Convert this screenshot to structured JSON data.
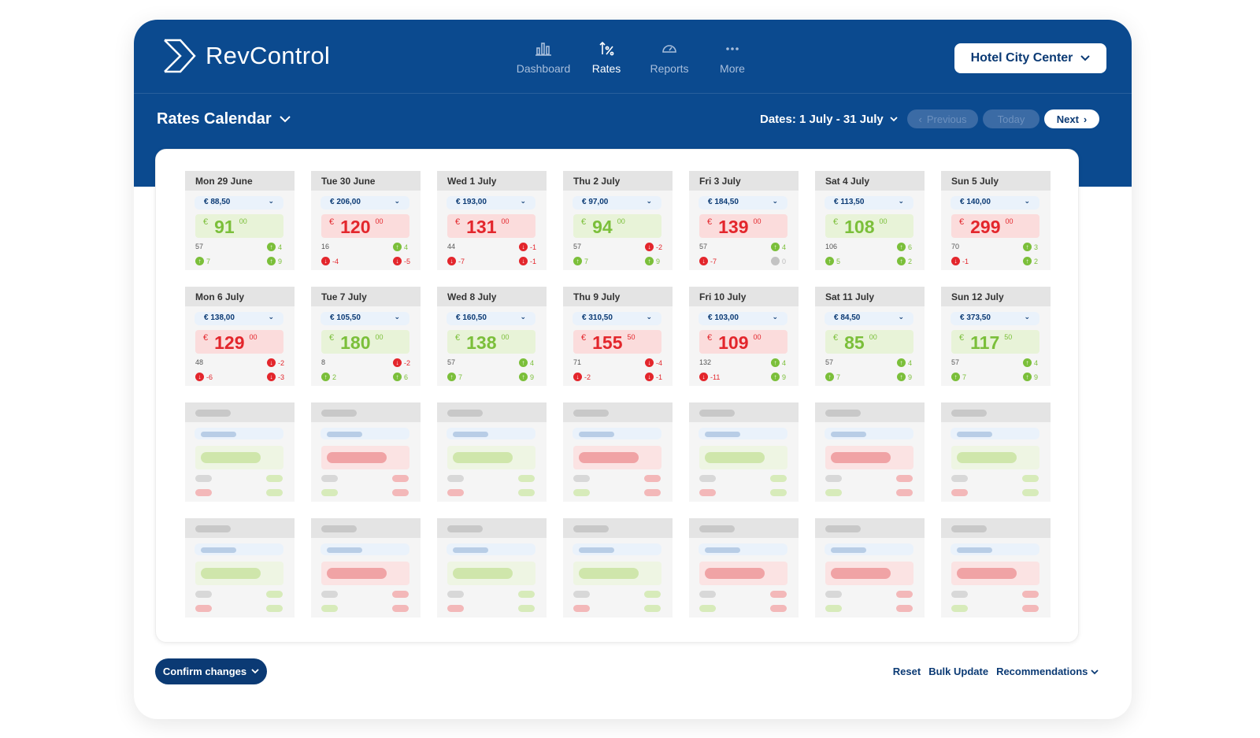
{
  "brand": {
    "name": "RevControl"
  },
  "nav": [
    {
      "label": "Dashboard",
      "icon": "bar-chart-icon",
      "active": false
    },
    {
      "label": "Rates",
      "icon": "rates-icon",
      "active": true
    },
    {
      "label": "Reports",
      "icon": "gauge-icon",
      "active": false
    },
    {
      "label": "More",
      "icon": "more-dots-icon",
      "active": false
    }
  ],
  "hotel_selector": {
    "label": "Hotel City Center"
  },
  "toolbar": {
    "view_title": "Rates Calendar",
    "dates_label": "Dates: 1 July - 31 July",
    "prev_label": "Previous",
    "today_label": "Today",
    "next_label": "Next"
  },
  "colors": {
    "brand_blue": "#0b4a8f",
    "green": "#7bbf3a",
    "red": "#e3262c"
  },
  "days": [
    {
      "date": "Mon 29 June",
      "base": "€ 88,50",
      "price": "91",
      "cents": "00",
      "trend": "green",
      "occ": "57",
      "s1": {
        "dir": "up",
        "v": "4"
      },
      "s2": {
        "dir": "up",
        "v": "7"
      },
      "s3": {
        "dir": "up",
        "v": "9"
      }
    },
    {
      "date": "Tue 30 June",
      "base": "€ 206,00",
      "price": "120",
      "cents": "00",
      "trend": "red",
      "occ": "16",
      "s1": {
        "dir": "up",
        "v": "4"
      },
      "s2": {
        "dir": "down",
        "v": "-4"
      },
      "s3": {
        "dir": "down",
        "v": "-5"
      }
    },
    {
      "date": "Wed 1 July",
      "base": "€ 193,00",
      "price": "131",
      "cents": "00",
      "trend": "red",
      "occ": "44",
      "s1": {
        "dir": "down",
        "v": "-1"
      },
      "s2": {
        "dir": "down",
        "v": "-7"
      },
      "s3": {
        "dir": "down",
        "v": "-1"
      }
    },
    {
      "date": "Thu 2 July",
      "base": "€ 97,00",
      "price": "94",
      "cents": "00",
      "trend": "green",
      "occ": "57",
      "s1": {
        "dir": "down",
        "v": "-2"
      },
      "s2": {
        "dir": "up",
        "v": "7"
      },
      "s3": {
        "dir": "up",
        "v": "9"
      }
    },
    {
      "date": "Fri 3 July",
      "base": "€ 184,50",
      "price": "139",
      "cents": "00",
      "trend": "red",
      "occ": "57",
      "s1": {
        "dir": "up",
        "v": "4"
      },
      "s2": {
        "dir": "down",
        "v": "-7"
      },
      "s3": {
        "dir": "neutral",
        "v": "0"
      }
    },
    {
      "date": "Sat 4 July",
      "base": "€ 113,50",
      "price": "108",
      "cents": "00",
      "trend": "green",
      "occ": "106",
      "s1": {
        "dir": "up",
        "v": "6"
      },
      "s2": {
        "dir": "up",
        "v": "5"
      },
      "s3": {
        "dir": "up",
        "v": "2"
      }
    },
    {
      "date": "Sun 5 July",
      "base": "€ 140,00",
      "price": "299",
      "cents": "00",
      "trend": "red",
      "occ": "70",
      "s1": {
        "dir": "up",
        "v": "3"
      },
      "s2": {
        "dir": "down",
        "v": "-1"
      },
      "s3": {
        "dir": "up",
        "v": "2"
      }
    },
    {
      "date": "Mon 6 July",
      "base": "€ 138,00",
      "price": "129",
      "cents": "00",
      "trend": "red",
      "occ": "48",
      "s1": {
        "dir": "down",
        "v": "-2"
      },
      "s2": {
        "dir": "down",
        "v": "-6"
      },
      "s3": {
        "dir": "down",
        "v": "-3"
      }
    },
    {
      "date": "Tue 7 July",
      "base": "€ 105,50",
      "price": "180",
      "cents": "00",
      "trend": "green",
      "occ": "8",
      "s1": {
        "dir": "down",
        "v": "-2"
      },
      "s2": {
        "dir": "up",
        "v": "2"
      },
      "s3": {
        "dir": "up",
        "v": "6"
      }
    },
    {
      "date": "Wed 8 July",
      "base": "€ 160,50",
      "price": "138",
      "cents": "00",
      "trend": "green",
      "occ": "57",
      "s1": {
        "dir": "up",
        "v": "4"
      },
      "s2": {
        "dir": "up",
        "v": "7"
      },
      "s3": {
        "dir": "up",
        "v": "9"
      }
    },
    {
      "date": "Thu 9 July",
      "base": "€ 310,50",
      "price": "155",
      "cents": "50",
      "trend": "red",
      "occ": "71",
      "s1": {
        "dir": "down",
        "v": "-4"
      },
      "s2": {
        "dir": "down",
        "v": "-2"
      },
      "s3": {
        "dir": "down",
        "v": "-1"
      }
    },
    {
      "date": "Fri 10 July",
      "base": "€ 103,00",
      "price": "109",
      "cents": "00",
      "trend": "red",
      "occ": "132",
      "s1": {
        "dir": "up",
        "v": "4"
      },
      "s2": {
        "dir": "down",
        "v": "-11"
      },
      "s3": {
        "dir": "up",
        "v": "9"
      }
    },
    {
      "date": "Sat 11 July",
      "base": "€ 84,50",
      "price": "85",
      "cents": "00",
      "trend": "green",
      "occ": "57",
      "s1": {
        "dir": "up",
        "v": "4"
      },
      "s2": {
        "dir": "up",
        "v": "7"
      },
      "s3": {
        "dir": "up",
        "v": "9"
      }
    },
    {
      "date": "Sun 12 July",
      "base": "€ 373,50",
      "price": "117",
      "cents": "50",
      "trend": "green",
      "occ": "57",
      "s1": {
        "dir": "up",
        "v": "4"
      },
      "s2": {
        "dir": "up",
        "v": "7"
      },
      "s3": {
        "dir": "up",
        "v": "9"
      }
    }
  ],
  "placeholder_rows": [
    [
      "green",
      "red",
      "green",
      "red",
      "green",
      "red",
      "green"
    ],
    [
      "green",
      "red",
      "green",
      "green",
      "red",
      "red",
      "red"
    ]
  ],
  "footer": {
    "confirm_label": "Confirm changes",
    "reset_label": "Reset",
    "bulk_label": "Bulk Update",
    "recommendations_label": "Recommendations"
  }
}
